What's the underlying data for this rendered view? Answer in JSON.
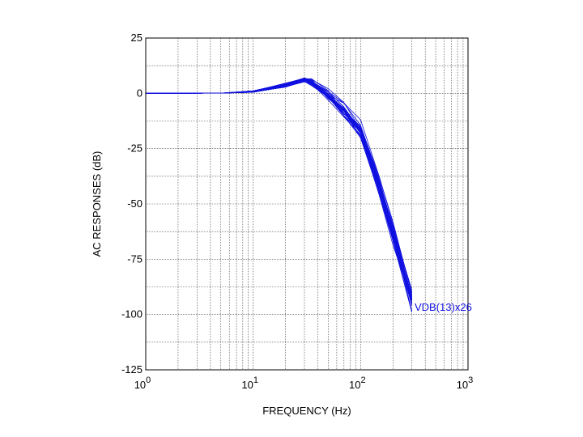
{
  "chart_data": {
    "type": "line",
    "title": "",
    "xlabel": "FREQUENCY  (Hz)",
    "ylabel": "AC RESPONSES  (dB)",
    "x_scale": "log",
    "xlim": [
      1,
      1000
    ],
    "ylim": [
      -125,
      25
    ],
    "x_ticks": [
      {
        "value": 1,
        "base": "10",
        "exp": "0"
      },
      {
        "value": 10,
        "base": "10",
        "exp": "1"
      },
      {
        "value": 100,
        "base": "10",
        "exp": "2"
      },
      {
        "value": 1000,
        "base": "10",
        "exp": "3"
      }
    ],
    "y_ticks": [
      {
        "value": 25,
        "label": "25"
      },
      {
        "value": 0,
        "label": "0"
      },
      {
        "value": -25,
        "label": "-25"
      },
      {
        "value": -50,
        "label": "-50"
      },
      {
        "value": -75,
        "label": "-75"
      },
      {
        "value": -100,
        "label": "-100"
      },
      {
        "value": -125,
        "label": "-125"
      }
    ],
    "grid": true,
    "series_color": "#1010e0",
    "trace_label": "VDB(13)x26",
    "series": [
      {
        "x": [
          1,
          5,
          10,
          20,
          30,
          35,
          50,
          70,
          100,
          150,
          200,
          300
        ],
        "y": [
          0,
          0.1,
          1.1,
          4.1,
          7.0,
          4.9,
          0.8,
          -4.4,
          -12.0,
          -38.0,
          -59.2,
          -90.0
        ]
      },
      {
        "x": [
          1,
          5,
          10,
          20,
          30,
          35,
          50,
          70,
          100,
          150,
          200,
          300
        ],
        "y": [
          0,
          0.1,
          0.5,
          2.9,
          5.3,
          3.5,
          -1.5,
          -6.7,
          -16.6,
          -40.3,
          -61.5,
          -95.1
        ]
      },
      {
        "x": [
          1,
          5,
          10,
          20,
          30,
          35,
          50,
          70,
          100,
          150,
          200,
          300
        ],
        "y": [
          0,
          0.1,
          0.5,
          3.8,
          6.3,
          5.5,
          0.2,
          -8.1,
          -18.2,
          -42.6,
          -63.0,
          -92.4
        ]
      },
      {
        "x": [
          1,
          5,
          10,
          20,
          30,
          35,
          50,
          70,
          100,
          150,
          200,
          300
        ],
        "y": [
          0,
          0.1,
          1.1,
          4.4,
          6.9,
          4.2,
          -0.8,
          -4.5,
          -14.4,
          -40.2,
          -61.3,
          -92.8
        ]
      },
      {
        "x": [
          1,
          5,
          10,
          20,
          30,
          35,
          50,
          70,
          100,
          150,
          200,
          300
        ],
        "y": [
          0,
          0.1,
          0.7,
          3.6,
          5.3,
          4.4,
          -3.1,
          -10.7,
          -18.8,
          -46.5,
          -68.6,
          -93.6
        ]
      },
      {
        "x": [
          1,
          5,
          10,
          20,
          30,
          35,
          50,
          70,
          100,
          150,
          200,
          300
        ],
        "y": [
          0,
          0.1,
          1.1,
          4.0,
          6.9,
          6.2,
          2.1,
          -4.2,
          -16.4,
          -44.6,
          -65.3,
          -91.5
        ]
      },
      {
        "x": [
          1,
          5,
          10,
          20,
          30,
          35,
          50,
          70,
          100,
          150,
          200,
          300
        ],
        "y": [
          0,
          0.1,
          1.0,
          4.6,
          6.8,
          5.5,
          0.9,
          -6.3,
          -17.1,
          -40.6,
          -60.0,
          -93.1
        ]
      },
      {
        "x": [
          1,
          5,
          10,
          20,
          30,
          35,
          50,
          70,
          100,
          150,
          200,
          300
        ],
        "y": [
          0,
          0.1,
          0.7,
          3.4,
          6.1,
          4.6,
          -0.6,
          -10.1,
          -17.5,
          -43.7,
          -64.7,
          -93.4
        ]
      },
      {
        "x": [
          1,
          5,
          10,
          20,
          30,
          35,
          50,
          70,
          100,
          150,
          200,
          300
        ],
        "y": [
          0,
          0.1,
          0.8,
          3.4,
          5.6,
          5.4,
          -0.5,
          -7.1,
          -16.5,
          -40.5,
          -60.7,
          -90.1
        ]
      },
      {
        "x": [
          1,
          5,
          10,
          20,
          30,
          35,
          50,
          70,
          100,
          150,
          200,
          300
        ],
        "y": [
          0,
          0.1,
          0.6,
          4.2,
          6.7,
          5.7,
          -1.5,
          -9.3,
          -15.6,
          -40.6,
          -64.4,
          -96.0
        ]
      },
      {
        "x": [
          1,
          5,
          10,
          20,
          30,
          35,
          50,
          70,
          100,
          150,
          200,
          300
        ],
        "y": [
          0,
          0.1,
          0.6,
          4.0,
          6.1,
          6.2,
          -1.6,
          -10.2,
          -18.9,
          -43.8,
          -66.7,
          -98.5
        ]
      },
      {
        "x": [
          1,
          5,
          10,
          20,
          30,
          35,
          50,
          70,
          100,
          150,
          200,
          300
        ],
        "y": [
          0,
          0.1,
          0.6,
          3.8,
          5.6,
          3.8,
          -1.7,
          -7.1,
          -17.3,
          -43.8,
          -63.6,
          -98.3
        ]
      },
      {
        "x": [
          1,
          5,
          10,
          20,
          30,
          35,
          50,
          70,
          100,
          150,
          200,
          300
        ],
        "y": [
          0,
          0.1,
          0.6,
          3.3,
          5.6,
          5.2,
          -2.0,
          -9.2,
          -14.6,
          -39.2,
          -61.5,
          -91.6
        ]
      },
      {
        "x": [
          1,
          5,
          10,
          20,
          30,
          35,
          50,
          70,
          100,
          150,
          200,
          300
        ],
        "y": [
          0,
          0.1,
          0.7,
          3.4,
          6.5,
          6.6,
          1.2,
          -9.0,
          -16.4,
          -41.4,
          -60.6,
          -88.9
        ]
      },
      {
        "x": [
          1,
          5,
          10,
          20,
          30,
          35,
          50,
          70,
          100,
          150,
          200,
          300
        ],
        "y": [
          0,
          0.1,
          1.0,
          3.3,
          6.9,
          4.5,
          -2.0,
          -8.1,
          -19.6,
          -44.4,
          -66.2,
          -95.6
        ]
      },
      {
        "x": [
          1,
          5,
          10,
          20,
          30,
          35,
          50,
          70,
          100,
          150,
          200,
          300
        ],
        "y": [
          0,
          0.1,
          0.8,
          4.5,
          5.8,
          5.9,
          -2.5,
          -7.6,
          -17.8,
          -43.4,
          -64.6,
          -92.0
        ]
      },
      {
        "x": [
          1,
          5,
          10,
          20,
          30,
          35,
          50,
          70,
          100,
          150,
          200,
          300
        ],
        "y": [
          0,
          0.1,
          0.8,
          3.7,
          6.5,
          5.4,
          -0.5,
          -7.4,
          -17.7,
          -43.5,
          -66.3,
          -94.9
        ]
      },
      {
        "x": [
          1,
          5,
          10,
          20,
          30,
          35,
          50,
          70,
          100,
          150,
          200,
          300
        ],
        "y": [
          0,
          0.1,
          0.9,
          4.5,
          5.4,
          4.6,
          0.8,
          -6.2,
          -16.6,
          -41.4,
          -63.3,
          -92.8
        ]
      },
      {
        "x": [
          1,
          5,
          10,
          20,
          30,
          35,
          50,
          70,
          100,
          150,
          200,
          300
        ],
        "y": [
          0,
          0.1,
          0.7,
          2.8,
          5.7,
          5.9,
          -1.1,
          -9.1,
          -17.5,
          -43.9,
          -66.2,
          -93.5
        ]
      },
      {
        "x": [
          1,
          5,
          10,
          20,
          30,
          35,
          50,
          70,
          100,
          150,
          200,
          300
        ],
        "y": [
          0,
          0.1,
          1.1,
          3.6,
          5.5,
          3.5,
          -1.7,
          -10.2,
          -20.0,
          -46.0,
          -66.7,
          -99.0
        ]
      },
      {
        "x": [
          1,
          5,
          10,
          20,
          30,
          35,
          50,
          70,
          100,
          150,
          200,
          300
        ],
        "y": [
          0,
          0.1,
          0.5,
          3.0,
          5.9,
          4.3,
          -1.4,
          -7.8,
          -20.2,
          -45.2,
          -66.7,
          -95.4
        ]
      },
      {
        "x": [
          1,
          5,
          10,
          20,
          30,
          35,
          50,
          70,
          100,
          150,
          200,
          300
        ],
        "y": [
          0,
          0.1,
          0.5,
          3.4,
          6.0,
          5.6,
          -0.4,
          -9.3,
          -15.2,
          -39.9,
          -60.6,
          -92.3
        ]
      },
      {
        "x": [
          1,
          5,
          10,
          20,
          30,
          35,
          50,
          70,
          100,
          150,
          200,
          300
        ],
        "y": [
          0,
          0.1,
          0.9,
          3.0,
          5.2,
          4.2,
          -1.4,
          -8.2,
          -14.8,
          -38.3,
          -58.1,
          -90.8
        ]
      },
      {
        "x": [
          1,
          5,
          10,
          20,
          30,
          35,
          50,
          70,
          100,
          150,
          200,
          300
        ],
        "y": [
          0,
          0.1,
          0.7,
          3.7,
          6.7,
          4.5,
          -1.3,
          -10.1,
          -16.8,
          -42.2,
          -63.3,
          -91.8
        ]
      },
      {
        "x": [
          1,
          5,
          10,
          20,
          30,
          35,
          50,
          70,
          100,
          150,
          200,
          300
        ],
        "y": [
          0,
          0.1,
          0.8,
          3.5,
          6.0,
          4.8,
          -0.9,
          -8.0,
          -17.0,
          -42.0,
          -63.0,
          -93.0
        ]
      },
      {
        "x": [
          1,
          5,
          10,
          20,
          30,
          35,
          50,
          70,
          100,
          150,
          200,
          300
        ],
        "y": [
          0,
          0.1,
          0.9,
          3.9,
          6.4,
          5.1,
          -0.3,
          -6.9,
          -15.9,
          -41.1,
          -62.4,
          -94.4
        ]
      }
    ]
  }
}
